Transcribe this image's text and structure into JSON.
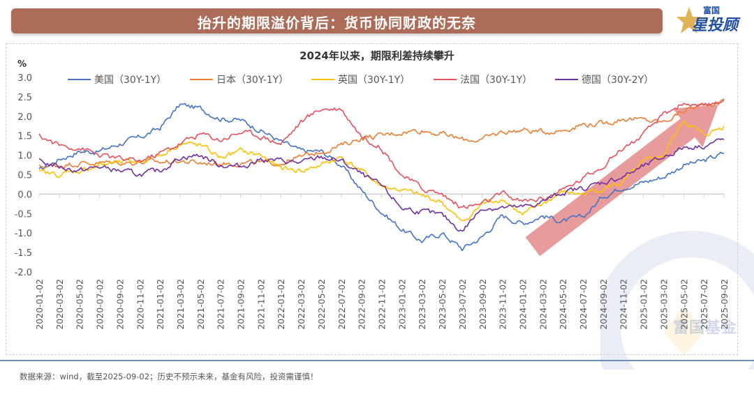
{
  "header": {
    "title": "抬升的期限溢价背后：货币协同财政的无奈",
    "logo_small": "富国",
    "logo_big": "星投顾",
    "logo_star_color": "#e0b25a",
    "banner_color": "#ac6c58"
  },
  "watermark": {
    "text": "富国基金"
  },
  "footer": {
    "note": "数据来源：wind，截至2025-09-02；历史不预示未来，基金有风险，投资需谨慎！"
  },
  "chart_data": {
    "type": "line",
    "title": "2024年以来，期限利差持续攀升",
    "ylabel": "%",
    "xlabel": "",
    "ylim": [
      -2.0,
      3.0
    ],
    "yticks": [
      "3.0",
      "2.5",
      "2.0",
      "1.5",
      "1.0",
      "0.5",
      "0.0",
      "-0.5",
      "-1.0",
      "-1.5",
      "-2.0"
    ],
    "ytick_values": [
      3.0,
      2.5,
      2.0,
      1.5,
      1.0,
      0.5,
      0.0,
      -0.5,
      -1.0,
      -1.5,
      -2.0
    ],
    "grid": false,
    "legend_position": "top",
    "x": [
      "2020-01-02",
      "2020-03-02",
      "2020-05-02",
      "2020-07-02",
      "2020-09-02",
      "2020-11-02",
      "2021-01-02",
      "2021-03-02",
      "2021-05-02",
      "2021-07-02",
      "2021-09-02",
      "2021-11-02",
      "2022-01-02",
      "2022-03-02",
      "2022-05-02",
      "2022-07-02",
      "2022-09-02",
      "2022-11-02",
      "2023-01-02",
      "2023-03-02",
      "2023-05-02",
      "2023-07-02",
      "2023-09-02",
      "2023-11-02",
      "2024-01-02",
      "2024-03-02",
      "2024-05-02",
      "2024-07-02",
      "2024-09-02",
      "2024-11-02",
      "2025-01-02",
      "2025-03-02",
      "2025-05-02",
      "2025-07-02",
      "2025-09-02"
    ],
    "series": [
      {
        "name": "美国（30Y-1Y）",
        "color": "#4472c4",
        "values": [
          0.6,
          0.9,
          1.1,
          1.1,
          1.3,
          1.45,
          1.7,
          2.3,
          2.2,
          1.95,
          1.9,
          1.65,
          1.35,
          1.1,
          1.1,
          0.75,
          0.1,
          -0.45,
          -0.9,
          -1.2,
          -1.0,
          -1.4,
          -1.1,
          -0.55,
          -0.75,
          -0.55,
          -0.7,
          -0.6,
          -0.05,
          0.2,
          0.3,
          0.45,
          0.75,
          0.85,
          1.05
        ]
      },
      {
        "name": "日本（30Y-1Y）",
        "color": "#ed7d31",
        "values": [
          0.7,
          0.75,
          0.8,
          0.8,
          0.82,
          0.82,
          0.82,
          0.85,
          0.8,
          0.8,
          0.8,
          0.8,
          0.8,
          0.95,
          1.1,
          1.25,
          1.45,
          1.5,
          1.6,
          1.65,
          1.55,
          1.4,
          1.4,
          1.6,
          1.65,
          1.6,
          1.65,
          1.8,
          1.8,
          1.95,
          1.9,
          1.85,
          2.15,
          2.3,
          2.4
        ]
      },
      {
        "name": "英国（30Y-1Y）",
        "color": "#ffc000",
        "values": [
          0.55,
          0.5,
          0.6,
          0.75,
          0.8,
          0.85,
          1.0,
          1.3,
          1.25,
          0.95,
          1.1,
          1.0,
          0.65,
          0.6,
          0.75,
          0.95,
          0.6,
          0.2,
          0.1,
          -0.05,
          -0.2,
          -0.75,
          -0.25,
          -0.1,
          -0.55,
          -0.25,
          0.05,
          0.0,
          0.15,
          0.3,
          0.8,
          1.0,
          1.9,
          1.5,
          1.75
        ]
      },
      {
        "name": "法国（30Y-1Y）",
        "color": "#e8505b",
        "values": [
          1.5,
          1.25,
          1.2,
          1.0,
          0.9,
          0.85,
          1.05,
          1.3,
          1.55,
          1.4,
          1.6,
          1.5,
          1.3,
          1.85,
          2.2,
          2.2,
          1.5,
          1.2,
          0.5,
          0.15,
          0.0,
          -0.35,
          -0.25,
          0.0,
          -0.2,
          -0.1,
          0.1,
          0.4,
          0.75,
          1.2,
          1.5,
          2.05,
          2.35,
          2.2,
          2.45
        ]
      },
      {
        "name": "德国（30Y-2Y）",
        "color": "#7030a0",
        "values": [
          0.85,
          0.7,
          0.6,
          0.7,
          0.6,
          0.5,
          0.6,
          0.95,
          1.0,
          0.75,
          0.7,
          0.9,
          0.85,
          0.8,
          0.95,
          0.85,
          0.5,
          0.2,
          -0.35,
          -0.45,
          -0.55,
          -0.95,
          -0.35,
          -0.35,
          -0.35,
          -0.2,
          0.05,
          0.15,
          0.3,
          0.45,
          0.7,
          0.95,
          1.2,
          1.25,
          1.4
        ]
      }
    ],
    "annotation": {
      "type": "trend-arrow",
      "from": [
        "2024-02-02",
        -1.35
      ],
      "to": [
        "2025-08-15",
        2.3
      ],
      "color": "#e07a7a"
    }
  }
}
